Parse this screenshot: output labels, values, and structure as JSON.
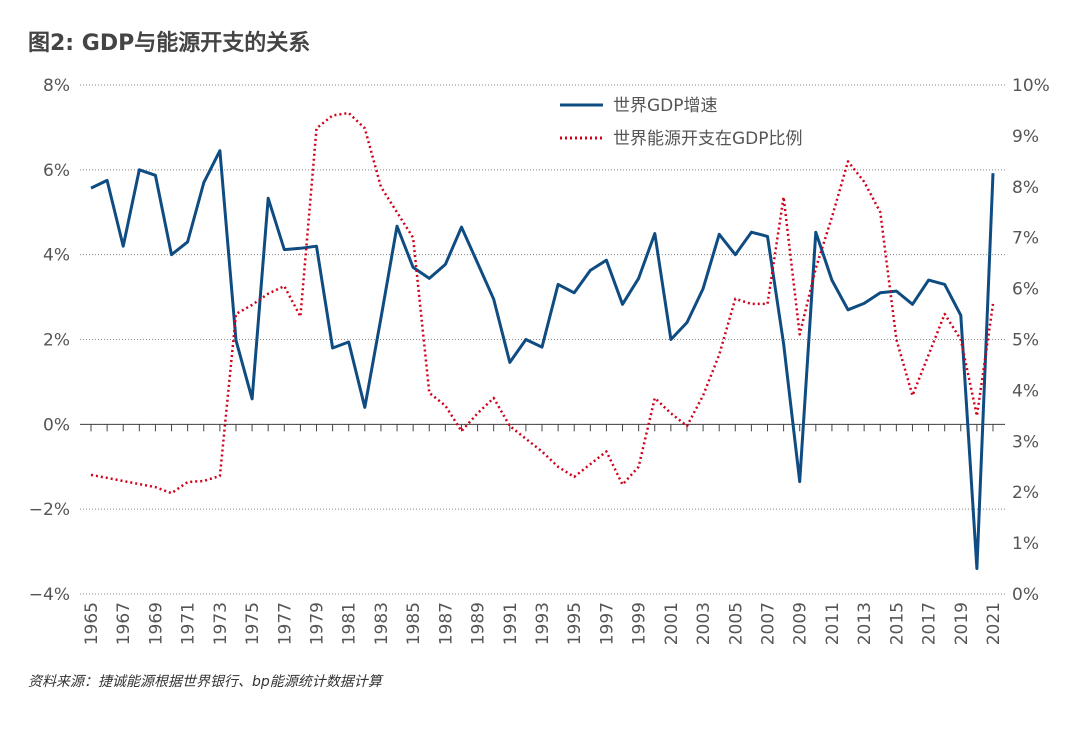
{
  "chart_data": {
    "type": "line",
    "title": "图2: GDP与能源开支的关系",
    "source": "资料来源：捷诚能源根据世界银行、bp能源统计数据计算",
    "x": [
      1965,
      1966,
      1967,
      1968,
      1969,
      1970,
      1971,
      1972,
      1973,
      1974,
      1975,
      1976,
      1977,
      1978,
      1979,
      1980,
      1981,
      1982,
      1983,
      1984,
      1985,
      1986,
      1987,
      1988,
      1989,
      1990,
      1991,
      1992,
      1993,
      1994,
      1995,
      1996,
      1997,
      1998,
      1999,
      2000,
      2001,
      2002,
      2003,
      2004,
      2005,
      2006,
      2007,
      2008,
      2009,
      2010,
      2011,
      2012,
      2013,
      2014,
      2015,
      2016,
      2017,
      2018,
      2019,
      2020,
      2021
    ],
    "xlim": [
      1965,
      2021
    ],
    "xticks": [
      1965,
      1967,
      1969,
      1971,
      1973,
      1975,
      1977,
      1979,
      1981,
      1983,
      1985,
      1987,
      1989,
      1991,
      1993,
      1995,
      1997,
      1999,
      2001,
      2003,
      2005,
      2007,
      2009,
      2011,
      2013,
      2015,
      2017,
      2019,
      2021
    ],
    "ylim": [
      -4,
      8
    ],
    "yticks": [
      {
        "value": -4,
        "label": "−4%"
      },
      {
        "value": -2,
        "label": "−2%"
      },
      {
        "value": 0,
        "label": "0%"
      },
      {
        "value": 2,
        "label": "2%"
      },
      {
        "value": 4,
        "label": "4%"
      },
      {
        "value": 6,
        "label": "6%"
      },
      {
        "value": 8,
        "label": "8%"
      }
    ],
    "y2lim": [
      0,
      10
    ],
    "y2ticks": [
      {
        "value": 0,
        "label": "0%"
      },
      {
        "value": 1,
        "label": "1%"
      },
      {
        "value": 2,
        "label": "2%"
      },
      {
        "value": 3,
        "label": "3%"
      },
      {
        "value": 4,
        "label": "4%"
      },
      {
        "value": 5,
        "label": "5%"
      },
      {
        "value": 6,
        "label": "6%"
      },
      {
        "value": 7,
        "label": "7%"
      },
      {
        "value": 8,
        "label": "8%"
      },
      {
        "value": 9,
        "label": "9%"
      },
      {
        "value": 10,
        "label": "10%"
      }
    ],
    "grid": true,
    "series": [
      {
        "name": "世界GDP增速",
        "color": "#0f4c81",
        "style": "solid",
        "values": [
          5.57,
          5.75,
          4.2,
          6.0,
          5.87,
          4.0,
          4.3,
          5.7,
          6.45,
          1.98,
          0.6,
          5.33,
          4.12,
          4.15,
          4.2,
          1.8,
          1.94,
          0.4,
          2.5,
          4.67,
          3.7,
          3.44,
          3.77,
          4.65,
          3.8,
          2.95,
          1.46,
          2.0,
          1.82,
          3.3,
          3.1,
          3.63,
          3.87,
          2.83,
          3.44,
          4.5,
          2.0,
          2.4,
          3.2,
          4.48,
          4.0,
          4.53,
          4.43,
          1.9,
          -1.35,
          4.53,
          3.4,
          2.7,
          2.85,
          3.1,
          3.14,
          2.83,
          3.4,
          3.3,
          2.57,
          -3.4,
          5.92
        ]
      },
      {
        "name": "世界能源开支在GDP比例",
        "color": "#d0021b",
        "style": "dotted",
        "axis": "y2",
        "values": [
          2.34,
          2.28,
          2.22,
          2.16,
          2.1,
          1.98,
          2.2,
          2.22,
          2.32,
          5.5,
          5.68,
          5.9,
          6.05,
          5.45,
          9.15,
          9.4,
          9.45,
          9.15,
          8.0,
          7.5,
          7.0,
          3.95,
          3.7,
          3.2,
          3.55,
          3.85,
          3.3,
          3.05,
          2.8,
          2.5,
          2.3,
          2.55,
          2.8,
          2.15,
          2.5,
          3.85,
          3.55,
          3.3,
          3.9,
          4.7,
          5.8,
          5.7,
          5.7,
          7.8,
          5.1,
          6.4,
          7.4,
          8.5,
          8.1,
          7.5,
          5.0,
          3.9,
          4.7,
          5.5,
          5.0,
          3.5,
          5.7
        ]
      }
    ]
  }
}
